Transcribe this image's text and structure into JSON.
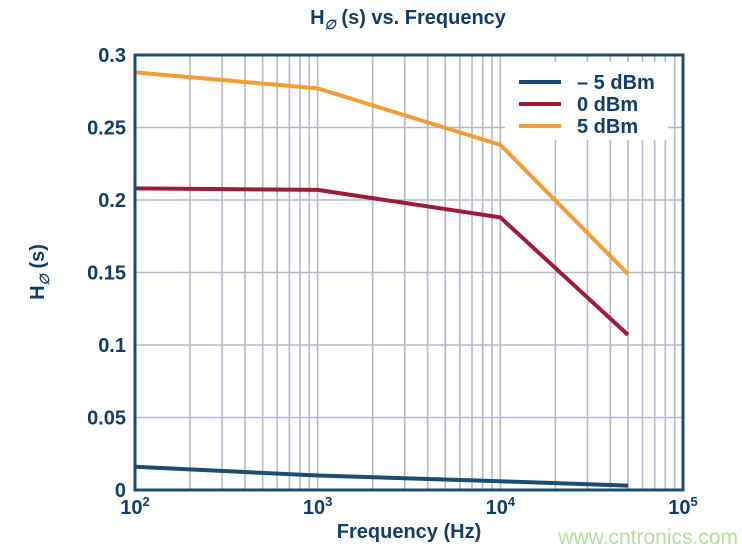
{
  "title": {
    "pre": "H",
    "sub": "∅",
    "post": " (s) vs. Frequency"
  },
  "watermark": "www.cntronics.com",
  "colors": {
    "text_navy": "#123d66",
    "plot_border": "#1c4c72",
    "grid": "#b4b8c9",
    "watermark_green": "#b3de9d",
    "legend_background": "#ffffff"
  },
  "chart_data": {
    "type": "line",
    "title": "H∅ (s) vs. Frequency",
    "xlabel": "Frequency (Hz)",
    "ylabel": {
      "pre": "H",
      "sub": "∅",
      "post": " (s)"
    },
    "x_scale": "log",
    "xlim": [
      100,
      100000
    ],
    "ylim": [
      0,
      0.3
    ],
    "x_ticks": [
      100,
      1000,
      10000,
      100000
    ],
    "x_tick_labels": [
      "10^2",
      "10^3",
      "10^4",
      "10^5"
    ],
    "y_ticks": [
      0,
      0.05,
      0.1,
      0.15,
      0.2,
      0.25,
      0.3
    ],
    "y_tick_labels": [
      "0",
      "0.05",
      "0.1",
      "0.15",
      "0.2",
      "0.25",
      "0.3"
    ],
    "grid": true,
    "grid_minor_x_log": true,
    "legend_position": "top-right",
    "series": [
      {
        "name": "– 5 dBm",
        "color": "#1c4c72",
        "x": [
          100,
          1000,
          10000,
          50000
        ],
        "y": [
          0.016,
          0.01,
          0.006,
          0.003
        ]
      },
      {
        "name": "0 dBm",
        "color": "#9e1b3a",
        "x": [
          100,
          1000,
          10000,
          50000
        ],
        "y": [
          0.208,
          0.207,
          0.188,
          0.107
        ]
      },
      {
        "name": "5 dBm",
        "color": "#f39c38",
        "x": [
          100,
          1000,
          10000,
          50000
        ],
        "y": [
          0.288,
          0.277,
          0.238,
          0.149
        ]
      }
    ]
  }
}
